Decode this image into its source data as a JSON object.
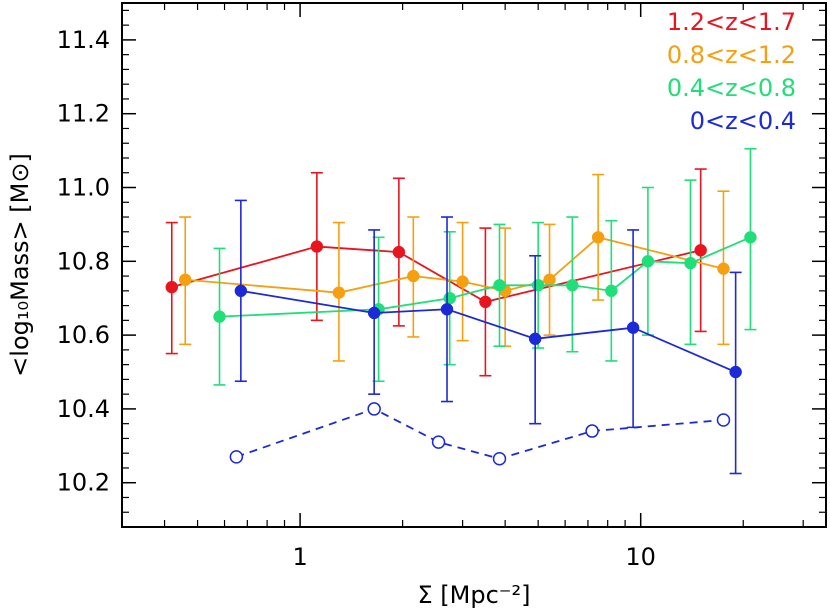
{
  "chart_data": {
    "type": "scatter",
    "xlabel": "Σ [Mpc⁻²]",
    "ylabel": "<log₁₀Mass> [M⊙]",
    "xscale": "log",
    "xlim": [
      0.3,
      35
    ],
    "ylim": [
      10.08,
      11.5
    ],
    "x_ticks": [
      1,
      10
    ],
    "x_tick_labels": [
      "1",
      "10"
    ],
    "y_ticks": [
      10.2,
      10.4,
      10.6,
      10.8,
      11.0,
      11.2,
      11.4
    ],
    "y_tick_labels": [
      "10.2",
      "10.4",
      "10.6",
      "10.8",
      "11.0",
      "11.2",
      "11.4"
    ],
    "grid": false,
    "legend_position": "top-right",
    "series": [
      {
        "name": "1.2<z<1.7",
        "color": "#e8141e",
        "marker": "filled-circle",
        "line": "solid",
        "points": [
          {
            "x": 0.42,
            "y": 10.73,
            "err_lo": 10.55,
            "err_hi": 10.905
          },
          {
            "x": 1.12,
            "y": 10.84,
            "err_lo": 10.64,
            "err_hi": 11.04
          },
          {
            "x": 1.95,
            "y": 10.825,
            "err_lo": 10.625,
            "err_hi": 11.025
          },
          {
            "x": 3.5,
            "y": 10.69,
            "err_lo": 10.49,
            "err_hi": 10.89
          },
          {
            "x": 15.0,
            "y": 10.83,
            "err_lo": 10.61,
            "err_hi": 11.05
          }
        ]
      },
      {
        "name": "0.8<z<1.2",
        "color": "#f5a011",
        "marker": "filled-circle",
        "line": "solid",
        "points": [
          {
            "x": 0.46,
            "y": 10.75,
            "err_lo": 10.575,
            "err_hi": 10.92
          },
          {
            "x": 1.3,
            "y": 10.715,
            "err_lo": 10.53,
            "err_hi": 10.905
          },
          {
            "x": 2.15,
            "y": 10.76,
            "err_lo": 10.595,
            "err_hi": 10.92
          },
          {
            "x": 3.0,
            "y": 10.745,
            "err_lo": 10.585,
            "err_hi": 10.905
          },
          {
            "x": 4.0,
            "y": 10.72,
            "err_lo": 10.57,
            "err_hi": 10.89
          },
          {
            "x": 5.4,
            "y": 10.75,
            "err_lo": 10.6,
            "err_hi": 10.9
          },
          {
            "x": 7.5,
            "y": 10.865,
            "err_lo": 10.695,
            "err_hi": 11.035
          },
          {
            "x": 17.5,
            "y": 10.78,
            "err_lo": 10.575,
            "err_hi": 10.99
          }
        ]
      },
      {
        "name": "0.4<z<0.8",
        "color": "#20de78",
        "marker": "filled-circle",
        "line": "solid",
        "points": [
          {
            "x": 0.58,
            "y": 10.65,
            "err_lo": 10.465,
            "err_hi": 10.835
          },
          {
            "x": 1.7,
            "y": 10.67,
            "err_lo": 10.475,
            "err_hi": 10.865
          },
          {
            "x": 2.75,
            "y": 10.7,
            "err_lo": 10.52,
            "err_hi": 10.88
          },
          {
            "x": 3.85,
            "y": 10.735,
            "err_lo": 10.57,
            "err_hi": 10.9
          },
          {
            "x": 5.0,
            "y": 10.735,
            "err_lo": 10.565,
            "err_hi": 10.905
          },
          {
            "x": 6.3,
            "y": 10.735,
            "err_lo": 10.555,
            "err_hi": 10.92
          },
          {
            "x": 8.2,
            "y": 10.72,
            "err_lo": 10.53,
            "err_hi": 10.91
          },
          {
            "x": 10.5,
            "y": 10.8,
            "err_lo": 10.6,
            "err_hi": 11.0
          },
          {
            "x": 14.0,
            "y": 10.795,
            "err_lo": 10.575,
            "err_hi": 11.02
          },
          {
            "x": 21.0,
            "y": 10.865,
            "err_lo": 10.615,
            "err_hi": 11.105
          }
        ]
      },
      {
        "name": "0<z<0.4",
        "color": "#1c29d6",
        "marker": "filled-circle",
        "line": "solid",
        "points": [
          {
            "x": 0.67,
            "y": 10.72,
            "err_lo": 10.475,
            "err_hi": 10.965
          },
          {
            "x": 1.65,
            "y": 10.66,
            "err_lo": 10.44,
            "err_hi": 10.885
          },
          {
            "x": 2.7,
            "y": 10.67,
            "err_lo": 10.42,
            "err_hi": 10.92
          },
          {
            "x": 4.9,
            "y": 10.59,
            "err_lo": 10.36,
            "err_hi": 10.815
          },
          {
            "x": 9.5,
            "y": 10.62,
            "err_lo": 10.35,
            "err_hi": 10.885
          },
          {
            "x": 19.0,
            "y": 10.5,
            "err_lo": 10.225,
            "err_hi": 10.77
          }
        ]
      },
      {
        "name": "",
        "color": "#1c29d6",
        "marker": "open-circle",
        "line": "dashed",
        "points": [
          {
            "x": 0.65,
            "y": 10.27
          },
          {
            "x": 1.65,
            "y": 10.4
          },
          {
            "x": 2.55,
            "y": 10.31
          },
          {
            "x": 3.85,
            "y": 10.265
          },
          {
            "x": 7.2,
            "y": 10.34
          },
          {
            "x": 17.5,
            "y": 10.37
          }
        ]
      }
    ],
    "legend": [
      "1.2<z<1.7",
      "0.8<z<1.2",
      "0.4<z<0.8",
      "0<z<0.4"
    ]
  }
}
